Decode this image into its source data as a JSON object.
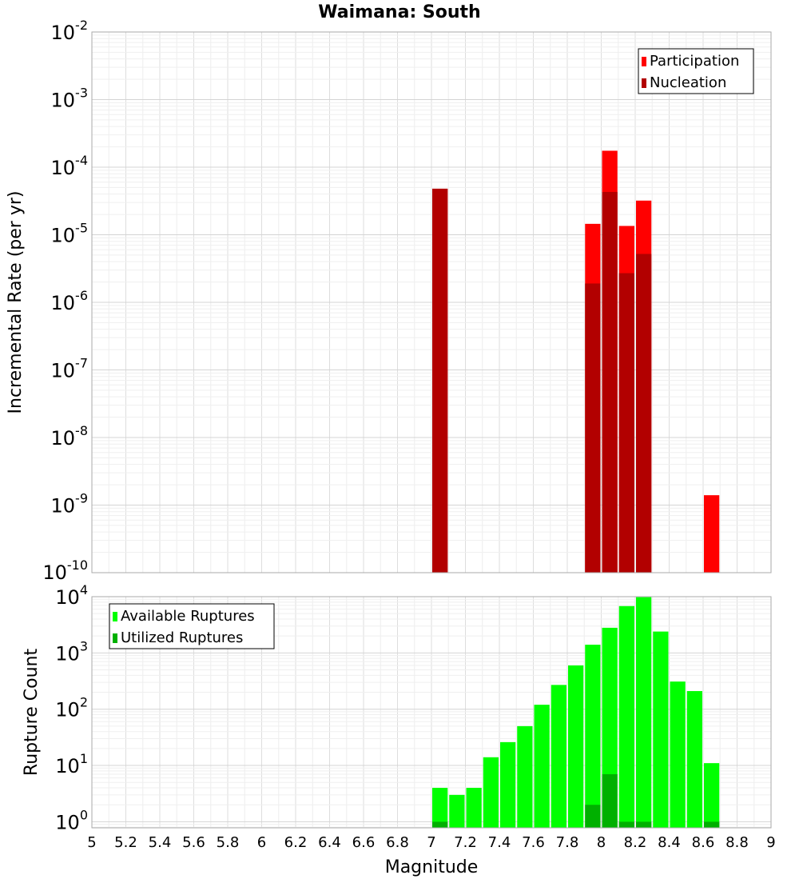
{
  "chart_data": {
    "title": "Waimana: South",
    "xlabel": "Magnitude",
    "xlim": [
      5,
      9
    ],
    "xticks": [
      "5",
      "5.2",
      "5.4",
      "5.6",
      "5.8",
      "6",
      "6.2",
      "6.4",
      "6.6",
      "6.8",
      "7",
      "7.2",
      "7.4",
      "7.6",
      "7.8",
      "8",
      "8.2",
      "8.4",
      "8.6",
      "8.8",
      "9"
    ],
    "bin_width": 0.1,
    "grid": true,
    "panels": [
      {
        "type": "bar",
        "y_scale": "log",
        "ylabel": "Incremental Rate (per yr)",
        "ylim": [
          1e-10,
          0.01
        ],
        "yticks": [
          {
            "base": "10",
            "exp": "-10"
          },
          {
            "base": "10",
            "exp": "-9"
          },
          {
            "base": "10",
            "exp": "-8"
          },
          {
            "base": "10",
            "exp": "-7"
          },
          {
            "base": "10",
            "exp": "-6"
          },
          {
            "base": "10",
            "exp": "-5"
          },
          {
            "base": "10",
            "exp": "-4"
          },
          {
            "base": "10",
            "exp": "-3"
          },
          {
            "base": "10",
            "exp": "-2"
          }
        ],
        "legend_position": "top-right",
        "series": [
          {
            "name": "Participation",
            "color": "#ff0000",
            "x": [
              7.05,
              7.95,
              8.05,
              8.15,
              8.25,
              8.65
            ],
            "values": [
              4.8e-05,
              1.45e-05,
              0.000175,
              1.35e-05,
              3.2e-05,
              1.4e-09
            ]
          },
          {
            "name": "Nucleation",
            "color": "#b20000",
            "x": [
              7.05,
              7.95,
              8.05,
              8.15,
              8.25
            ],
            "values": [
              4.8e-05,
              1.9e-06,
              4.3e-05,
              2.7e-06,
              5.2e-06
            ]
          }
        ]
      },
      {
        "type": "bar",
        "y_scale": "log",
        "ylabel": "Rupture Count",
        "ylim": [
          0.78,
          10000
        ],
        "yticks": [
          {
            "base": "10",
            "exp": "0"
          },
          {
            "base": "10",
            "exp": "1"
          },
          {
            "base": "10",
            "exp": "2"
          },
          {
            "base": "10",
            "exp": "3"
          },
          {
            "base": "10",
            "exp": "4"
          }
        ],
        "legend_position": "top-left",
        "series": [
          {
            "name": "Available Ruptures",
            "color": "#00ff00",
            "x": [
              7.05,
              7.15,
              7.25,
              7.35,
              7.45,
              7.55,
              7.65,
              7.75,
              7.85,
              7.95,
              8.05,
              8.15,
              8.25,
              8.35,
              8.45,
              8.55,
              8.65
            ],
            "values": [
              4,
              3,
              4,
              14,
              26,
              50,
              120,
              270,
              600,
              1400,
              2800,
              6800,
              9800,
              2400,
              310,
              210,
              11
            ]
          },
          {
            "name": "Utilized Ruptures",
            "color": "#00b000",
            "x": [
              7.05,
              7.95,
              8.05,
              8.15,
              8.25,
              8.65
            ],
            "values": [
              1,
              2,
              7,
              1,
              1,
              1
            ]
          }
        ]
      }
    ]
  }
}
